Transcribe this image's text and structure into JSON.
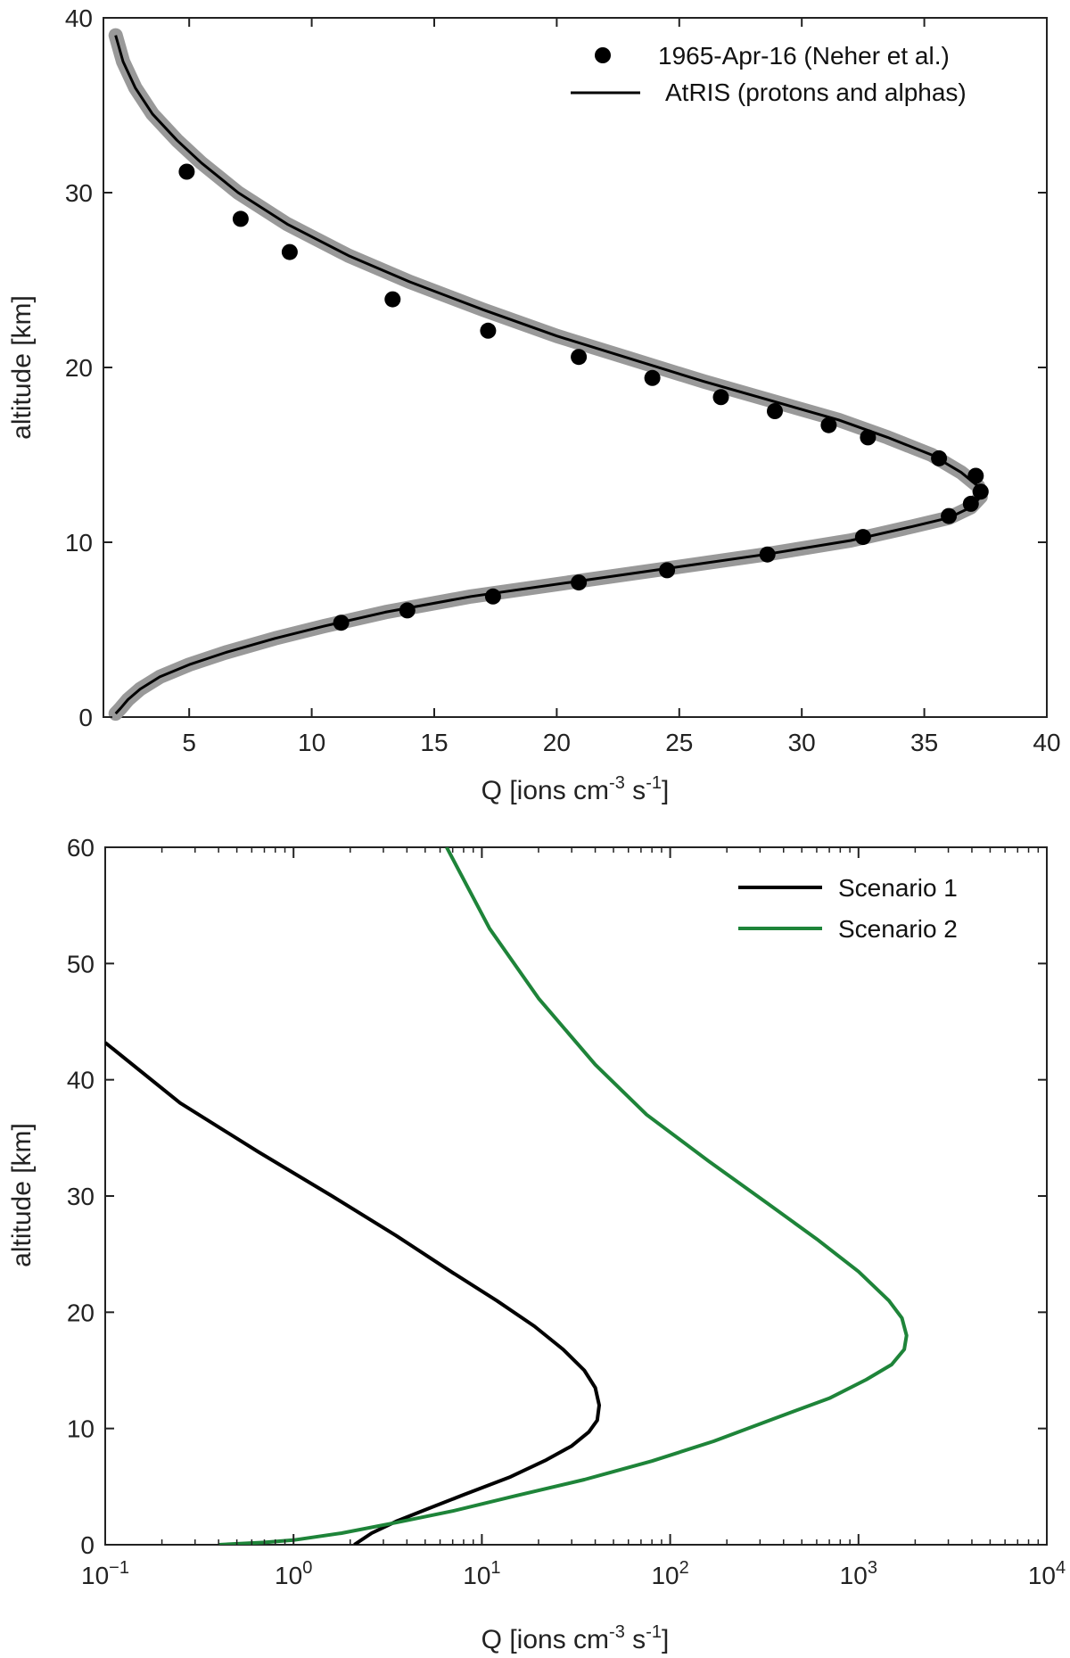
{
  "chart_data": [
    {
      "type": "line",
      "xlabel": "Q [ions cm-3 s-1]",
      "xlabel_parts": [
        "Q [ions cm",
        "-3",
        " s",
        "-1",
        "]"
      ],
      "ylabel": "altitude [km]",
      "xlim": [
        1.5,
        40
      ],
      "ylim": [
        0,
        40
      ],
      "xticks": [
        5,
        10,
        15,
        20,
        25,
        30,
        35,
        40
      ],
      "yticks": [
        0,
        10,
        20,
        30,
        40
      ],
      "grid": false,
      "legend_position": "top-right",
      "series": [
        {
          "name": "1965-Apr-16 (Neher et al.)",
          "kind": "scatter",
          "color": "#000000",
          "x": [
            4.9,
            7.1,
            9.1,
            13.3,
            17.2,
            20.9,
            23.9,
            26.7,
            28.9,
            31.1,
            32.7,
            35.6,
            37.1,
            37.3,
            36.9,
            36.0,
            32.5,
            28.6,
            24.5,
            20.9,
            17.4,
            13.9,
            11.2
          ],
          "y": [
            31.2,
            28.5,
            26.6,
            23.9,
            22.1,
            20.6,
            19.4,
            18.3,
            17.5,
            16.7,
            16.0,
            14.8,
            13.8,
            12.9,
            12.2,
            11.5,
            10.3,
            9.3,
            8.4,
            7.7,
            6.9,
            6.1,
            5.4
          ]
        },
        {
          "name": "AtRIS  (protons and alphas)",
          "kind": "line",
          "color": "#000000",
          "band_color": "#999999",
          "x": [
            2.0,
            2.3,
            2.8,
            3.5,
            4.5,
            5.5,
            7.0,
            9.0,
            11.5,
            14.0,
            17.0,
            20.0,
            23.0,
            26.0,
            29.0,
            31.5,
            33.5,
            35.3,
            36.5,
            37.2,
            37.3,
            36.9,
            36.0,
            34.5,
            32.0,
            28.5,
            24.5,
            20.5,
            16.5,
            13.0,
            10.5,
            8.5,
            6.5,
            5.0,
            3.8,
            3.0,
            2.5,
            2.2,
            2.0
          ],
          "y": [
            39.0,
            37.5,
            36.0,
            34.5,
            33.0,
            31.7,
            30.0,
            28.2,
            26.4,
            24.9,
            23.3,
            21.8,
            20.5,
            19.2,
            18.0,
            17.0,
            16.0,
            15.0,
            14.0,
            13.2,
            12.6,
            12.0,
            11.4,
            10.9,
            10.1,
            9.3,
            8.5,
            7.7,
            6.9,
            6.0,
            5.2,
            4.5,
            3.7,
            3.0,
            2.3,
            1.6,
            1.0,
            0.5,
            0.2
          ]
        }
      ]
    },
    {
      "type": "line",
      "xlabel": "Q [ions cm-3 s-1]",
      "xlabel_parts": [
        "Q [ions cm",
        "-3",
        " s",
        "-1",
        "]"
      ],
      "ylabel": "altitude [km]",
      "xscale": "log",
      "xlim": [
        0.1,
        10000
      ],
      "ylim": [
        0,
        60
      ],
      "xticks": [
        {
          "base": "10",
          "exp": "−1",
          "value": 0.1
        },
        {
          "base": "10",
          "exp": "0",
          "value": 1
        },
        {
          "base": "10",
          "exp": "1",
          "value": 10
        },
        {
          "base": "10",
          "exp": "2",
          "value": 100
        },
        {
          "base": "10",
          "exp": "3",
          "value": 1000
        },
        {
          "base": "10",
          "exp": "4",
          "value": 10000
        }
      ],
      "yticks": [
        0,
        10,
        20,
        30,
        40,
        50,
        60
      ],
      "grid": false,
      "legend_position": "top-right",
      "series": [
        {
          "name": "Scenario 1",
          "color": "#000000",
          "x": [
            2.1,
            2.6,
            3.5,
            5.0,
            8.0,
            14.0,
            22.0,
            30.0,
            37.0,
            41.0,
            42.0,
            40.0,
            35.0,
            27.0,
            19.0,
            12.0,
            7.0,
            3.5,
            1.6,
            0.65,
            0.25,
            0.1
          ],
          "y": [
            0.0,
            1.0,
            2.0,
            3.0,
            4.3,
            5.8,
            7.3,
            8.5,
            9.7,
            10.7,
            12.0,
            13.5,
            15.0,
            16.8,
            18.8,
            21.0,
            23.4,
            26.6,
            30.0,
            33.8,
            38.0,
            43.2
          ]
        },
        {
          "name": "Scenario 2",
          "color": "#1e8439",
          "x": [
            0.4,
            0.7,
            1.0,
            1.8,
            3.5,
            7.0,
            15.0,
            35.0,
            80.0,
            170.0,
            350.0,
            700.0,
            1100.0,
            1500.0,
            1750.0,
            1800.0,
            1700.0,
            1450.0,
            1000.0,
            600.0,
            320.0,
            160.0,
            75.0,
            40.0,
            20.0,
            11.0,
            6.5
          ],
          "y": [
            0.0,
            0.2,
            0.4,
            1.0,
            1.9,
            2.9,
            4.2,
            5.6,
            7.2,
            8.9,
            10.8,
            12.6,
            14.2,
            15.5,
            16.8,
            18.0,
            19.5,
            21.0,
            23.5,
            26.3,
            29.5,
            33.0,
            37.0,
            41.3,
            47.0,
            53.0,
            60.0
          ]
        }
      ]
    }
  ]
}
